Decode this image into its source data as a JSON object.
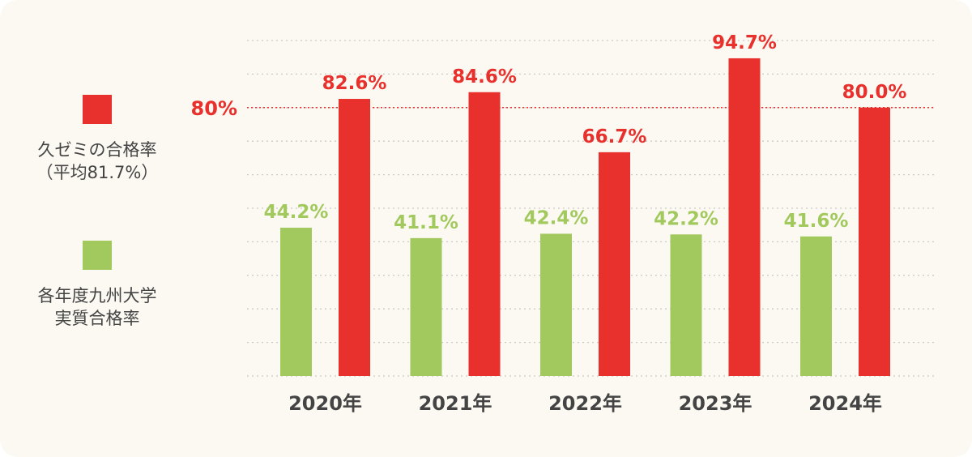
{
  "legend": {
    "school": {
      "line1": "久ゼミの合格率",
      "line2": "（平均81.7%）"
    },
    "university": {
      "line1": "各年度九州大学",
      "line2": "実質合格率"
    }
  },
  "colors": {
    "school": "#e8302c",
    "university": "#a2c95e",
    "grid": "#c9c9c9",
    "axis_text": "#444444"
  },
  "chart_data": {
    "type": "bar",
    "categories": [
      "2020年",
      "2021年",
      "2022年",
      "2023年",
      "2024年"
    ],
    "series": [
      {
        "name": "各年度九州大学実質合格率",
        "color": "#a2c95e",
        "values": [
          44.2,
          41.1,
          42.4,
          42.2,
          41.6
        ],
        "labels": [
          "44.2%",
          "41.1%",
          "42.4%",
          "42.2%",
          "41.6%"
        ]
      },
      {
        "name": "久ゼミの合格率（平均81.7%）",
        "color": "#e8302c",
        "values": [
          82.6,
          84.6,
          66.7,
          94.7,
          80.0
        ],
        "labels": [
          "82.6%",
          "84.6%",
          "66.7%",
          "94.7%",
          "80.0%"
        ]
      }
    ],
    "reference_line": {
      "value": 80,
      "label": "80%"
    },
    "ylim": [
      0,
      100
    ],
    "grid": true,
    "title": "",
    "xlabel": "",
    "ylabel": ""
  }
}
